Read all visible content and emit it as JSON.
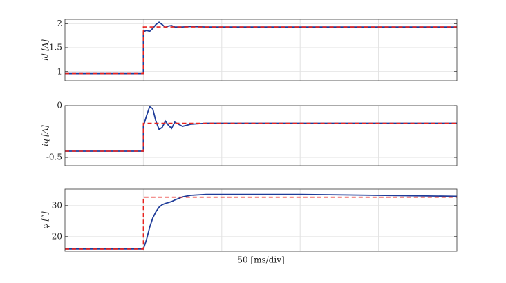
{
  "chart_data": [
    {
      "type": "line",
      "ylabel": "id [A]",
      "x": [
        0,
        50,
        50,
        52,
        54,
        56,
        58,
        60,
        62,
        64,
        66,
        68,
        70,
        75,
        80,
        90,
        100,
        150,
        200,
        250
      ],
      "series": [
        {
          "color": "#1f3c99",
          "dash": false,
          "values": [
            0.96,
            0.96,
            1.83,
            1.86,
            1.84,
            1.9,
            1.98,
            2.03,
            1.98,
            1.92,
            1.95,
            1.96,
            1.93,
            1.93,
            1.94,
            1.93,
            1.93,
            1.93,
            1.93,
            1.93
          ]
        },
        {
          "color": "#e8231f",
          "dash": true,
          "values": [
            0.96,
            0.96,
            1.93,
            1.93,
            1.93,
            1.93,
            1.93,
            1.93,
            1.93,
            1.93,
            1.93,
            1.93,
            1.93,
            1.93,
            1.93,
            1.93,
            1.93,
            1.93,
            1.93,
            1.93
          ]
        }
      ],
      "xlim": [
        0,
        250
      ],
      "xticks": [
        50,
        100,
        150,
        200
      ],
      "ylim": [
        0.81,
        2.09
      ],
      "yticks": [
        1,
        1.5,
        2
      ],
      "grid": true
    },
    {
      "type": "line",
      "ylabel": "iq [A]",
      "x": [
        0,
        50,
        50,
        52,
        54,
        56,
        58,
        60,
        62,
        64,
        66,
        68,
        70,
        75,
        80,
        90,
        100,
        150,
        200,
        250
      ],
      "series": [
        {
          "color": "#1f3c99",
          "dash": false,
          "values": [
            -0.44,
            -0.44,
            -0.2,
            -0.1,
            -0.01,
            -0.03,
            -0.15,
            -0.23,
            -0.21,
            -0.15,
            -0.19,
            -0.22,
            -0.16,
            -0.2,
            -0.18,
            -0.17,
            -0.17,
            -0.17,
            -0.17,
            -0.17
          ]
        },
        {
          "color": "#e8231f",
          "dash": true,
          "values": [
            -0.44,
            -0.44,
            -0.17,
            -0.17,
            -0.17,
            -0.17,
            -0.17,
            -0.17,
            -0.17,
            -0.17,
            -0.17,
            -0.17,
            -0.17,
            -0.17,
            -0.17,
            -0.17,
            -0.17,
            -0.17,
            -0.17,
            -0.17
          ]
        }
      ],
      "xlim": [
        0,
        250
      ],
      "xticks": [
        50,
        100,
        150,
        200
      ],
      "ylim": [
        -0.58,
        0
      ],
      "yticks": [
        -0.5,
        0
      ],
      "grid": true
    },
    {
      "type": "line",
      "ylabel": "φ [°]",
      "xlabel": "50 [ms/div]",
      "x": [
        0,
        50,
        50,
        52,
        54,
        56,
        58,
        60,
        62,
        64,
        66,
        68,
        70,
        75,
        80,
        90,
        100,
        150,
        200,
        250
      ],
      "series": [
        {
          "color": "#1f3c99",
          "dash": false,
          "values": [
            16,
            16,
            16,
            19,
            23,
            26,
            28,
            29.5,
            30.3,
            30.7,
            31,
            31.3,
            31.8,
            32.8,
            33.3,
            33.6,
            33.6,
            33.6,
            33.3,
            33
          ]
        },
        {
          "color": "#e8231f",
          "dash": true,
          "values": [
            16,
            16,
            32.7,
            32.7,
            32.7,
            32.7,
            32.7,
            32.7,
            32.7,
            32.7,
            32.7,
            32.7,
            32.7,
            32.7,
            32.7,
            32.7,
            32.7,
            32.7,
            32.7,
            32.7
          ]
        }
      ],
      "xlim": [
        0,
        250
      ],
      "xticks": [
        50,
        100,
        150,
        200
      ],
      "ylim": [
        15.3,
        35.3
      ],
      "yticks": [
        20,
        30
      ],
      "grid": true
    }
  ]
}
